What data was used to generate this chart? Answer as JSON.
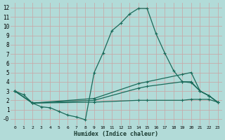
{
  "xlabel": "Humidex (Indice chaleur)",
  "bg_color": "#b2dbd8",
  "grid_major_color": "#c8a8a8",
  "grid_minor_color": "#c8a8a8",
  "line_color": "#1a6b5a",
  "xlim": [
    -0.5,
    23.5
  ],
  "ylim": [
    -0.7,
    12.5
  ],
  "xticks": [
    0,
    1,
    2,
    3,
    4,
    5,
    6,
    7,
    8,
    9,
    10,
    11,
    12,
    13,
    14,
    15,
    16,
    17,
    18,
    19,
    20,
    21,
    22,
    23
  ],
  "yticks": [
    0,
    1,
    2,
    3,
    4,
    5,
    6,
    7,
    8,
    9,
    10,
    11,
    12
  ],
  "ytick_labels": [
    "-0",
    "1",
    "2",
    "3",
    "4",
    "5",
    "6",
    "7",
    "8",
    "9",
    "10",
    "11",
    "12"
  ],
  "series": [
    {
      "x": [
        0,
        1,
        2,
        3,
        4,
        5,
        6,
        7,
        8,
        9,
        10,
        11,
        12,
        13,
        14,
        15,
        16,
        17,
        18,
        19,
        20,
        21,
        22,
        23
      ],
      "y": [
        3.0,
        2.6,
        1.7,
        1.3,
        1.2,
        0.8,
        0.4,
        0.2,
        -0.1,
        5.0,
        7.1,
        9.5,
        10.3,
        11.3,
        11.9,
        11.9,
        9.2,
        7.1,
        5.2,
        4.0,
        3.9,
        3.0,
        2.5,
        1.8
      ]
    },
    {
      "x": [
        0,
        2,
        9,
        14,
        15,
        19,
        20,
        21,
        22,
        23
      ],
      "y": [
        3.0,
        1.7,
        2.2,
        3.8,
        4.0,
        4.8,
        5.0,
        3.0,
        2.5,
        1.8
      ]
    },
    {
      "x": [
        0,
        2,
        9,
        14,
        15,
        19,
        20,
        21,
        22,
        23
      ],
      "y": [
        3.0,
        1.7,
        2.0,
        3.3,
        3.5,
        4.0,
        4.0,
        3.0,
        2.5,
        1.8
      ]
    },
    {
      "x": [
        0,
        2,
        9,
        14,
        15,
        19,
        20,
        21,
        22,
        23
      ],
      "y": [
        3.0,
        1.7,
        1.8,
        2.0,
        2.0,
        2.0,
        2.1,
        2.1,
        2.1,
        1.8
      ]
    }
  ]
}
